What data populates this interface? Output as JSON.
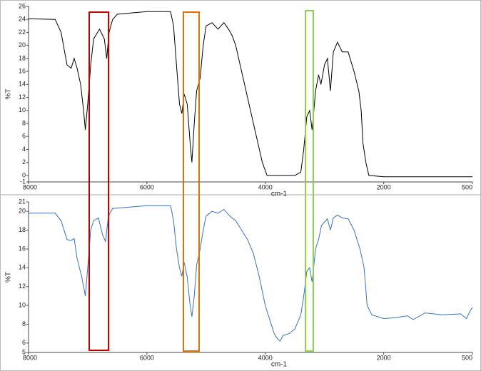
{
  "chart_data": [
    {
      "type": "line",
      "ylabel": "%T",
      "xlabel": "cm-1",
      "color": "#000000",
      "xlim": [
        8000,
        500
      ],
      "xticks": [
        8000,
        6000,
        4000,
        2000,
        500
      ],
      "ylim": [
        -1,
        26
      ],
      "yticks": [
        -1,
        0,
        2,
        4,
        6,
        8,
        10,
        12,
        14,
        16,
        18,
        20,
        22,
        24,
        26
      ],
      "x": [
        8000,
        7550,
        7450,
        7350,
        7280,
        7230,
        7180,
        7120,
        7070,
        7040,
        7000,
        6950,
        6900,
        6800,
        6720,
        6680,
        6640,
        6580,
        6500,
        6000,
        5600,
        5550,
        5500,
        5450,
        5410,
        5370,
        5320,
        5270,
        5240,
        5200,
        5160,
        5100,
        5050,
        5000,
        4900,
        4800,
        4700,
        4620,
        4560,
        4500,
        4450,
        4350,
        4200,
        4050,
        3970,
        3500,
        3400,
        3350,
        3300,
        3250,
        3210,
        3150,
        3100,
        3060,
        3000,
        2950,
        2900,
        2850,
        2780,
        2700,
        2600,
        2500,
        2420,
        2380,
        2350,
        2300,
        2250,
        2000,
        500
      ],
      "values": [
        24.1,
        24.0,
        22,
        17,
        16.5,
        18,
        16.5,
        14,
        10,
        7,
        11,
        17,
        21,
        22.5,
        21,
        18,
        22,
        24,
        24.8,
        25.2,
        25.2,
        23,
        17,
        11,
        9.5,
        12.5,
        11,
        5,
        2,
        8,
        13,
        15,
        20,
        23,
        23.5,
        22.5,
        23.5,
        22.5,
        21.5,
        20,
        18,
        14,
        8,
        2,
        0,
        0,
        0.5,
        4,
        9,
        10,
        7,
        13,
        15.5,
        14,
        17,
        18,
        13,
        19,
        20.5,
        19,
        19,
        16,
        13,
        10,
        5,
        2,
        0,
        -0.2,
        -0.2
      ]
    },
    {
      "type": "line",
      "ylabel": "%T",
      "xlabel": "cm-1",
      "color": "#3a72b8",
      "xlim": [
        8000,
        500
      ],
      "xticks": [
        8000,
        6000,
        4000,
        2000,
        500
      ],
      "ylim": [
        5,
        21
      ],
      "yticks": [
        5,
        6,
        8,
        10,
        12,
        14,
        16,
        18,
        20,
        21
      ],
      "x": [
        8000,
        7550,
        7450,
        7350,
        7280,
        7230,
        7180,
        7100,
        7040,
        7000,
        6950,
        6900,
        6820,
        6750,
        6700,
        6650,
        6580,
        6000,
        5600,
        5550,
        5500,
        5450,
        5410,
        5370,
        5320,
        5270,
        5240,
        5200,
        5160,
        5100,
        5050,
        5000,
        4900,
        4800,
        4700,
        4600,
        4500,
        4400,
        4300,
        4200,
        4100,
        4000,
        3900,
        3850,
        3800,
        3750,
        3700,
        3600,
        3500,
        3400,
        3350,
        3300,
        3250,
        3210,
        3150,
        3100,
        3050,
        2950,
        2900,
        2850,
        2780,
        2700,
        2600,
        2500,
        2400,
        2330,
        2280,
        2200,
        2000,
        1800,
        1600,
        1500,
        1300,
        1000,
        700,
        600,
        550,
        500
      ],
      "values": [
        19.8,
        19.8,
        19,
        17,
        16.9,
        17.1,
        15,
        13,
        11,
        14,
        18,
        19,
        19.3,
        17.5,
        16.8,
        19.5,
        20.3,
        20.6,
        20.6,
        19,
        16,
        14,
        13.1,
        14.6,
        13,
        10,
        8.8,
        11,
        14.3,
        16,
        18,
        19.5,
        20,
        19.8,
        20.2,
        19.5,
        19,
        18,
        17,
        15.5,
        13,
        10,
        8,
        7,
        6.5,
        6.2,
        6.8,
        7,
        7.5,
        9,
        11,
        13.6,
        14,
        12.5,
        16,
        17,
        18.5,
        19.2,
        18,
        19.3,
        19.6,
        19.3,
        19.2,
        18,
        16,
        14,
        10,
        9,
        8.6,
        8.7,
        8.9,
        8.5,
        9.2,
        9,
        9.1,
        8.6,
        9.3,
        9.8
      ]
    }
  ]
}
